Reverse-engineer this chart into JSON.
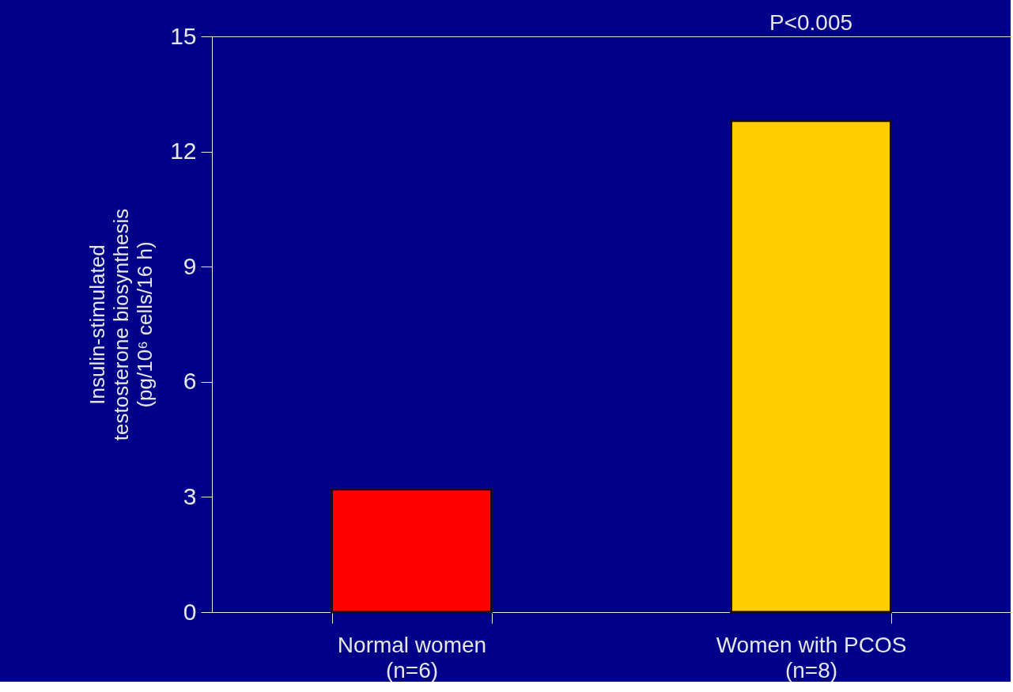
{
  "chart_data": {
    "type": "bar",
    "ylabel": "Insulin-stimulated\ntestosterone biosynthesis\n(pg/10⁶ cells/16 h)",
    "categories": [
      "Normal women\n(n=6)",
      "Women with PCOS\n(n=8)"
    ],
    "values": [
      3.2,
      12.8
    ],
    "colors": [
      "#ff0000",
      "#ffcc00"
    ],
    "ylim": [
      0,
      15
    ],
    "yticks": [
      0,
      3,
      6,
      9,
      12,
      15
    ],
    "grid": false,
    "annotations": [
      "P<0.005"
    ]
  }
}
